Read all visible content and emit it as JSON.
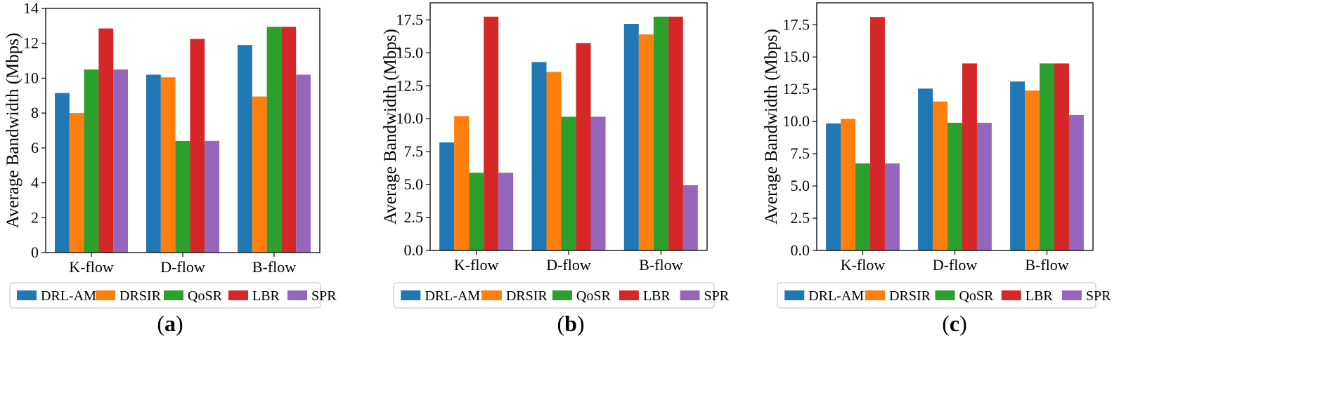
{
  "colors": {
    "DRL-AMIR": "#1f77b4",
    "DRSIR": "#ff7f0e",
    "QoSR": "#2ca02c",
    "LBR": "#d62728",
    "SPR": "#9467bd"
  },
  "chart_data": [
    {
      "type": "bar",
      "panel_label": {
        "open": "(",
        "letter": "a",
        "close": ")"
      },
      "categories": [
        "K-flow",
        "D-flow",
        "B-flow"
      ],
      "ylabel": "Average Bandwidth (Mbps)",
      "xlabel": "",
      "ylim": [
        0,
        14
      ],
      "yticks": [
        "0",
        "2",
        "4",
        "6",
        "8",
        "10",
        "12",
        "14"
      ],
      "ytick_values": [
        0,
        2,
        4,
        6,
        8,
        10,
        12,
        14
      ],
      "legend_position": "bottom",
      "series": [
        {
          "name": "DRL-AMIR",
          "values": [
            9.15,
            10.2,
            11.9
          ]
        },
        {
          "name": "DRSIR",
          "values": [
            8.0,
            10.05,
            8.95
          ]
        },
        {
          "name": "QoSR",
          "values": [
            10.5,
            6.4,
            12.95
          ]
        },
        {
          "name": "LBR",
          "values": [
            12.85,
            12.25,
            12.95
          ]
        },
        {
          "name": "SPR",
          "values": [
            10.5,
            6.4,
            10.2
          ]
        }
      ]
    },
    {
      "type": "bar",
      "panel_label": {
        "open": "(",
        "letter": "b",
        "close": ")"
      },
      "categories": [
        "K-flow",
        "D-flow",
        "B-flow"
      ],
      "ylabel": "Average Bandwidth (Mbps)",
      "xlabel": "",
      "ylim": [
        0,
        18.8
      ],
      "yticks": [
        "0.0",
        "2.5",
        "5.0",
        "7.5",
        "10.0",
        "12.5",
        "15.0",
        "17.5"
      ],
      "ytick_values": [
        0,
        2.5,
        5,
        7.5,
        10,
        12.5,
        15,
        17.5
      ],
      "legend_position": "bottom",
      "series": [
        {
          "name": "DRL-AMIR",
          "values": [
            8.2,
            14.3,
            17.2
          ]
        },
        {
          "name": "DRSIR",
          "values": [
            10.2,
            13.55,
            16.4
          ]
        },
        {
          "name": "QoSR",
          "values": [
            5.9,
            10.15,
            17.75
          ]
        },
        {
          "name": "LBR",
          "values": [
            17.75,
            15.75,
            17.75
          ]
        },
        {
          "name": "SPR",
          "values": [
            5.9,
            10.15,
            4.95
          ]
        }
      ]
    },
    {
      "type": "bar",
      "panel_label": {
        "open": "(",
        "letter": "c",
        "close": ")"
      },
      "categories": [
        "K-flow",
        "D-flow",
        "B-flow"
      ],
      "ylabel": "Average Bandwidth (Mbps)",
      "xlabel": "",
      "ylim": [
        0,
        19.2
      ],
      "yticks": [
        "0.0",
        "2.5",
        "5.0",
        "7.5",
        "10.0",
        "12.5",
        "15.0",
        "17.5"
      ],
      "ytick_values": [
        0,
        2.5,
        5,
        7.5,
        10,
        12.5,
        15,
        17.5
      ],
      "legend_position": "bottom",
      "series": [
        {
          "name": "DRL-AMIR",
          "values": [
            9.85,
            12.55,
            13.1
          ]
        },
        {
          "name": "DRSIR",
          "values": [
            10.2,
            11.55,
            12.4
          ]
        },
        {
          "name": "QoSR",
          "values": [
            6.75,
            9.9,
            14.5
          ]
        },
        {
          "name": "LBR",
          "values": [
            18.1,
            14.5,
            14.5
          ]
        },
        {
          "name": "SPR",
          "values": [
            6.75,
            9.9,
            10.5
          ]
        }
      ]
    }
  ]
}
